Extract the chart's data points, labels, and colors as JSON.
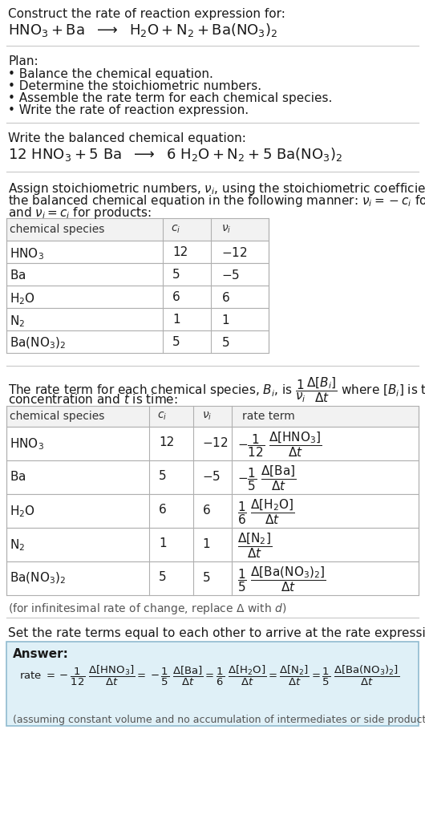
{
  "bg_color": "#ffffff",
  "text_color": "#000000",
  "table_border_color": "#b0b0b0",
  "answer_box_color": "#dff0f7",
  "answer_box_border": "#90bbd0",
  "title_text": "Construct the rate of reaction expression for:",
  "plan_header": "Plan:",
  "plan_items": [
    "• Balance the chemical equation.",
    "• Determine the stoichiometric numbers.",
    "• Assemble the rate term for each chemical species.",
    "• Write the rate of reaction expression."
  ],
  "balanced_header": "Write the balanced chemical equation:",
  "stoich_intro": "Assign stoichiometric numbers, $\\nu_i$, using the stoichiometric coefficients, $c_i$, from\nthe balanced chemical equation in the following manner: $\\nu_i = -c_i$ for reactants\nand $\\nu_i = c_i$ for products:",
  "rate_intro_p1": "The rate term for each chemical species, $B_i$, is $\\frac{1}{\\nu_i}\\frac{\\Delta[B_i]}{\\Delta t}$ where $[B_i]$ is the amount",
  "rate_intro_p2": "concentration and $t$ is time:",
  "infinitesimal_note": "(for infinitesimal rate of change, replace Δ with $d$)",
  "set_equal_text": "Set the rate terms equal to each other to arrive at the rate expression:",
  "answer_label": "Answer:",
  "footnote": "(assuming constant volume and no accumulation of intermediates or side products)"
}
